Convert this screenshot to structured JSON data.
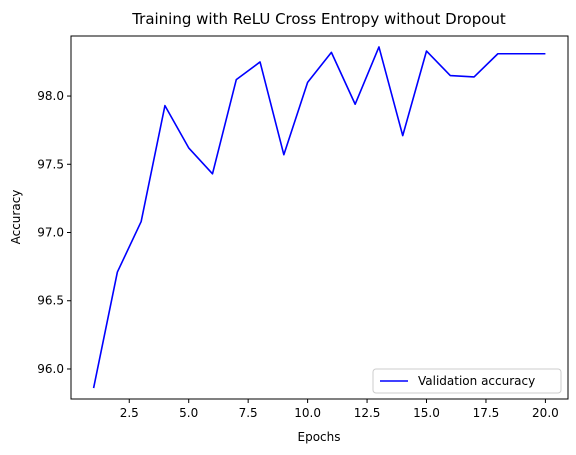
{
  "chart_data": {
    "type": "line",
    "title": "Training with ReLU Cross Entropy without Dropout",
    "xlabel": "Epochs",
    "ylabel": "Accuracy",
    "xlim": [
      0.05,
      20.95
    ],
    "ylim": [
      95.78,
      98.44
    ],
    "x_ticks": [
      2.5,
      5.0,
      7.5,
      10.0,
      12.5,
      15.0,
      17.5,
      20.0
    ],
    "x_tick_labels": [
      "2.5",
      "5.0",
      "7.5",
      "10.0",
      "12.5",
      "15.0",
      "17.5",
      "20.0"
    ],
    "y_ticks": [
      96.0,
      96.5,
      97.0,
      97.5,
      98.0
    ],
    "y_tick_labels": [
      "96.0",
      "96.5",
      "97.0",
      "97.5",
      "98.0"
    ],
    "grid": false,
    "legend_position": "lower-right",
    "series": [
      {
        "name": "Validation accuracy",
        "color": "#0000ff",
        "x": [
          1,
          2,
          3,
          4,
          5,
          6,
          7,
          8,
          9,
          10,
          11,
          12,
          13,
          14,
          15,
          16,
          17,
          18,
          19,
          20
        ],
        "y": [
          95.86,
          96.71,
          97.08,
          97.93,
          97.62,
          97.43,
          98.12,
          98.25,
          97.57,
          98.1,
          98.32,
          97.94,
          98.36,
          97.71,
          98.33,
          98.15,
          98.14,
          98.31,
          98.31,
          98.31
        ]
      }
    ]
  }
}
